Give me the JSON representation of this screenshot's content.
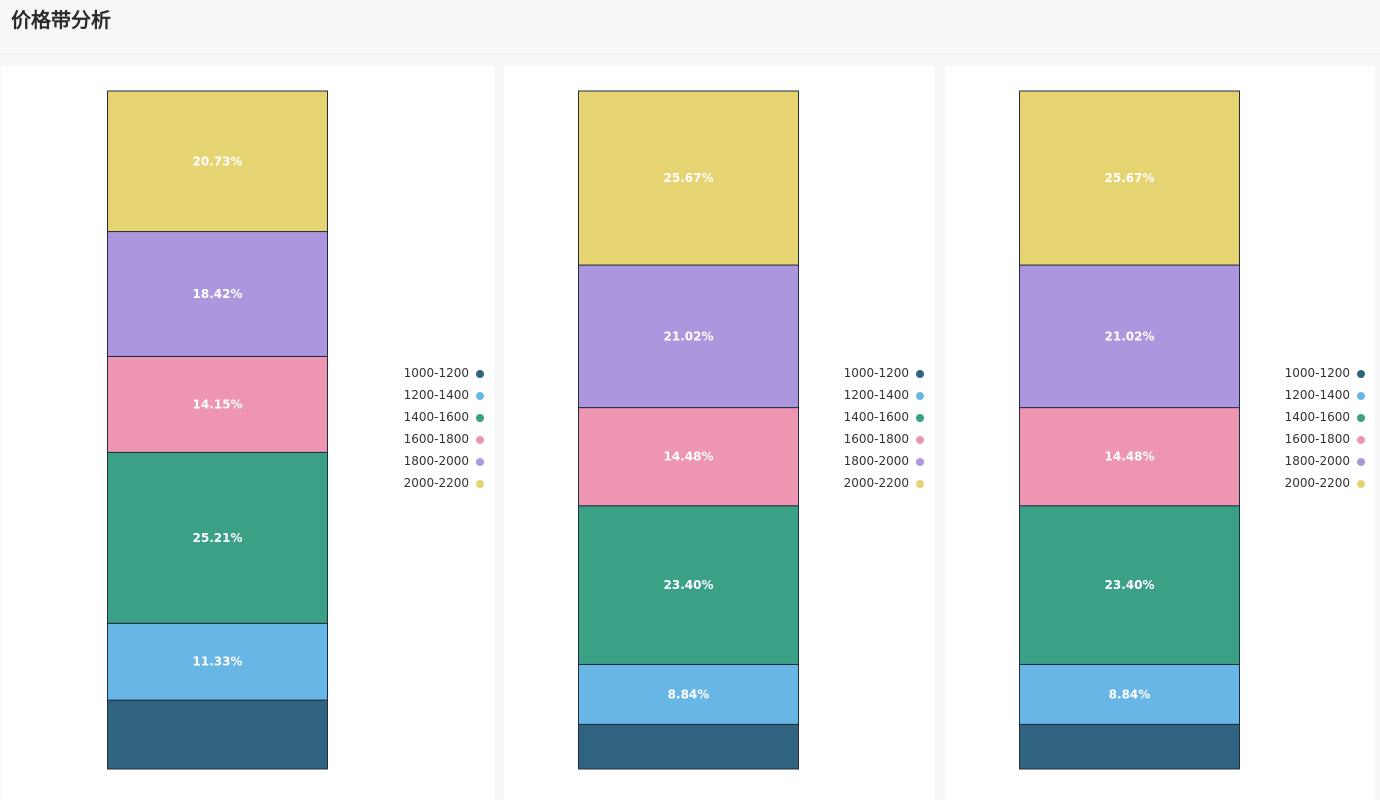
{
  "page": {
    "title": "价格带分析"
  },
  "colors": {
    "1000-1200": "#30637f",
    "1200-1400": "#68b6e6",
    "1400-1600": "#3aa186",
    "1600-1800": "#ee95b2",
    "1800-2000": "#ac96dd",
    "2000-2200": "#e6d473"
  },
  "chart_data": [
    {
      "type": "bar",
      "stacked": true,
      "normalized": true,
      "categories": [
        ""
      ],
      "series": [
        {
          "name": "1000-1200",
          "values": [
            10.16
          ],
          "label": ""
        },
        {
          "name": "1200-1400",
          "values": [
            11.33
          ],
          "label": "11.33%"
        },
        {
          "name": "1400-1600",
          "values": [
            25.21
          ],
          "label": "25.21%"
        },
        {
          "name": "1600-1800",
          "values": [
            14.15
          ],
          "label": "14.15%"
        },
        {
          "name": "1800-2000",
          "values": [
            18.42
          ],
          "label": "18.42%"
        },
        {
          "name": "2000-2200",
          "values": [
            20.73
          ],
          "label": "20.73%"
        }
      ],
      "legend": [
        "1000-1200",
        "1200-1400",
        "1400-1600",
        "1600-1800",
        "1800-2000",
        "2000-2200"
      ],
      "legend_position": "right",
      "ylim": [
        0,
        100
      ]
    },
    {
      "type": "bar",
      "stacked": true,
      "normalized": true,
      "categories": [
        ""
      ],
      "series": [
        {
          "name": "1000-1200",
          "values": [
            6.58
          ],
          "label": ""
        },
        {
          "name": "1200-1400",
          "values": [
            8.84
          ],
          "label": "8.84%"
        },
        {
          "name": "1400-1600",
          "values": [
            23.4
          ],
          "label": "23.40%"
        },
        {
          "name": "1600-1800",
          "values": [
            14.48
          ],
          "label": "14.48%"
        },
        {
          "name": "1800-2000",
          "values": [
            21.02
          ],
          "label": "21.02%"
        },
        {
          "name": "2000-2200",
          "values": [
            25.67
          ],
          "label": "25.67%"
        }
      ],
      "legend": [
        "1000-1200",
        "1200-1400",
        "1400-1600",
        "1600-1800",
        "1800-2000",
        "2000-2200"
      ],
      "legend_position": "right",
      "ylim": [
        0,
        100
      ]
    },
    {
      "type": "bar",
      "stacked": true,
      "normalized": true,
      "categories": [
        ""
      ],
      "series": [
        {
          "name": "1000-1200",
          "values": [
            6.58
          ],
          "label": ""
        },
        {
          "name": "1200-1400",
          "values": [
            8.84
          ],
          "label": "8.84%"
        },
        {
          "name": "1400-1600",
          "values": [
            23.4
          ],
          "label": "23.40%"
        },
        {
          "name": "1600-1800",
          "values": [
            14.48
          ],
          "label": "14.48%"
        },
        {
          "name": "1800-2000",
          "values": [
            21.02
          ],
          "label": "21.02%"
        },
        {
          "name": "2000-2200",
          "values": [
            25.67
          ],
          "label": "25.67%"
        }
      ],
      "legend": [
        "1000-1200",
        "1200-1400",
        "1400-1600",
        "1600-1800",
        "1800-2000",
        "2000-2200"
      ],
      "legend_position": "right",
      "ylim": [
        0,
        100
      ]
    }
  ]
}
